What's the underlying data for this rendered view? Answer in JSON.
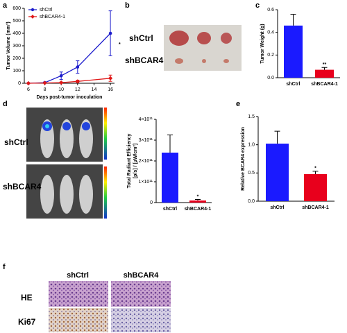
{
  "panels": [
    "a",
    "b",
    "c",
    "d",
    "e",
    "f"
  ],
  "photos": {
    "b": [
      "shCtrl",
      "shBCAR4"
    ],
    "d": [
      "shCtrl",
      "shBCAR4"
    ],
    "f": {
      "columns": [
        "shCtrl",
        "shBCAR4"
      ],
      "rows": [
        "HE",
        "Ki67"
      ]
    }
  },
  "chart_data": [
    {
      "type": "line",
      "xlabel": "Days post-tumor inoculation",
      "ylabel": "Tumor Volume (mm³)",
      "x": [
        6,
        8,
        10,
        12,
        16
      ],
      "xlim": [
        5.5,
        16.5
      ],
      "xticks": [
        6,
        8,
        10,
        12,
        14,
        16
      ],
      "ylim": [
        0,
        600
      ],
      "yticks": [
        0,
        100,
        200,
        300,
        400,
        500,
        600
      ],
      "series": [
        {
          "name": "shCtrl",
          "color": "#1c1ccc",
          "values": [
            0,
            5,
            60,
            130,
            400
          ],
          "errors": [
            0,
            5,
            30,
            50,
            180
          ]
        },
        {
          "name": "shBCAR4-1",
          "color": "#e01818",
          "values": [
            0,
            2,
            5,
            15,
            40
          ],
          "errors": [
            0,
            2,
            5,
            10,
            25
          ]
        }
      ],
      "annotation": "*",
      "legend": "upper left"
    },
    {
      "type": "bar",
      "ylabel": "Tumor Weight (g)",
      "categories": [
        "shCtrl",
        "shBCAR4-1"
      ],
      "values": [
        0.46,
        0.07
      ],
      "errors": [
        0.1,
        0.02
      ],
      "colors": [
        "#1a1aff",
        "#e8001c"
      ],
      "ylim": [
        0,
        0.6
      ],
      "yticks": [
        {
          "value": 0,
          "label": "0.0"
        },
        0.2,
        0.4,
        0.6
      ],
      "annotation": "**"
    },
    {
      "type": "bar",
      "ylabel": [
        "Total Radiant Efficiency",
        "[p/s] / [µW/cm²]"
      ],
      "categories": [
        "shCtrl",
        "shBCAR4-1"
      ],
      "values": [
        240000000000,
        10000000000
      ],
      "errors": [
        85000000000,
        5000000000
      ],
      "colors": [
        "#1a1aff",
        "#e8001c"
      ],
      "ylim": [
        0,
        400000000000
      ],
      "yticks": [
        0,
        {
          "value": 100000000000,
          "label": "1×10¹¹"
        },
        {
          "value": 200000000000,
          "label": "2×10¹¹"
        },
        {
          "value": 300000000000,
          "label": "3×10¹¹"
        },
        {
          "value": 400000000000,
          "label": "4×10¹¹"
        }
      ],
      "annotation": "*"
    },
    {
      "type": "bar",
      "ylabel": "Relative BCAR4 expression",
      "categories": [
        "shCtrl",
        "shBCAR4-1"
      ],
      "values": [
        1.02,
        0.48
      ],
      "errors": [
        0.22,
        0.05
      ],
      "colors": [
        "#1a1aff",
        "#e8001c"
      ],
      "ylim": [
        0,
        1.5
      ],
      "yticks": [
        {
          "value": 0,
          "label": "0.0"
        },
        0.5,
        {
          "value": 1,
          "label": "1.0"
        },
        1.5
      ],
      "annotation": "*"
    }
  ]
}
